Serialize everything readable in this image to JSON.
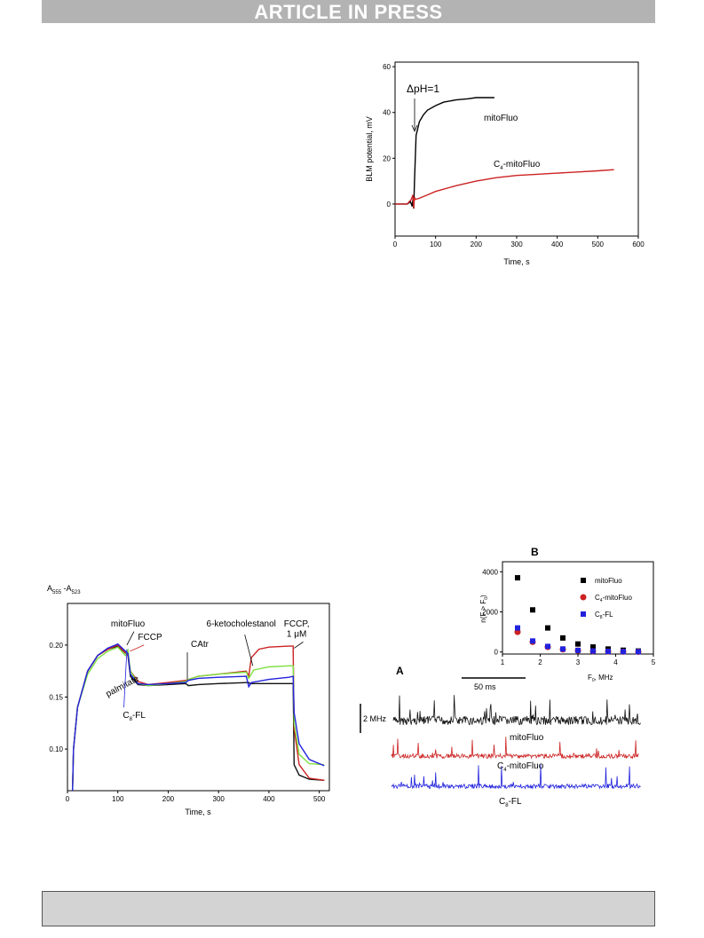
{
  "banner": "ARTICLE IN PRESS",
  "chart_data": [
    {
      "id": "blm",
      "type": "line",
      "xlabel": "Time, s",
      "ylabel": "BLM potential, mV",
      "xlim": [
        0,
        600
      ],
      "ylim": [
        -14,
        62
      ],
      "xticks": [
        0,
        100,
        200,
        300,
        400,
        500,
        600
      ],
      "yticks": [
        0,
        20,
        40,
        60
      ],
      "annotations": [
        {
          "text": "ΔpH=1",
          "x": 47,
          "y": 52
        }
      ],
      "series": [
        {
          "name": "mitoFluo",
          "color": "#000000",
          "x": [
            0,
            30,
            38,
            42,
            44,
            46,
            48,
            52,
            56,
            60,
            70,
            80,
            100,
            120,
            150,
            180,
            200,
            220,
            245
          ],
          "y": [
            0,
            0,
            1,
            -1,
            2,
            -2,
            10,
            30,
            33,
            36,
            39,
            41,
            43,
            44.5,
            45.5,
            46,
            46.5,
            46.5,
            46.5
          ]
        },
        {
          "name": "C4-mitoFluo",
          "color": "#cc2222",
          "x": [
            0,
            30,
            40,
            44,
            46,
            48,
            50,
            60,
            80,
            100,
            150,
            200,
            250,
            300,
            350,
            400,
            450,
            500,
            540
          ],
          "y": [
            0,
            0,
            2,
            4,
            -2,
            3,
            2,
            2.5,
            4,
            5.5,
            8,
            10,
            11.5,
            12.5,
            13,
            13.5,
            14,
            14.5,
            15
          ]
        }
      ]
    },
    {
      "id": "abs",
      "type": "line",
      "ylabel": "A555 -A523",
      "xlabel": "Time, s",
      "xlim": [
        0,
        520
      ],
      "ylim": [
        0.06,
        0.24
      ],
      "xticks": [
        0,
        100,
        200,
        300,
        400,
        500
      ],
      "yticks": [
        0.1,
        0.15,
        0.2
      ],
      "annotations": [
        {
          "text": "mitoFluo",
          "x": 120,
          "y": 0.218
        },
        {
          "text": "FCCP",
          "x": 140,
          "y": 0.205
        },
        {
          "text": "CAtr",
          "x": 245,
          "y": 0.198
        },
        {
          "text": "6-ketocholestanol",
          "x": 345,
          "y": 0.218
        },
        {
          "text": "FCCP,",
          "x": 455,
          "y": 0.218
        },
        {
          "text": "1 μM",
          "x": 455,
          "y": 0.208
        },
        {
          "text": "palmitate",
          "x": 80,
          "y": 0.15
        },
        {
          "text": "C8-FL",
          "x": 110,
          "y": 0.13
        }
      ],
      "series": [
        {
          "name": "black",
          "color": "#111111",
          "x": [
            10,
            12,
            20,
            40,
            60,
            80,
            100,
            120,
            125,
            140,
            160,
            200,
            235,
            240,
            260,
            300,
            360,
            362,
            400,
            440,
            448,
            450,
            460,
            480,
            510
          ],
          "y": [
            0.06,
            0.1,
            0.14,
            0.175,
            0.19,
            0.196,
            0.199,
            0.19,
            0.17,
            0.162,
            0.161,
            0.162,
            0.163,
            0.161,
            0.162,
            0.163,
            0.164,
            0.163,
            0.163,
            0.163,
            0.163,
            0.085,
            0.075,
            0.071,
            0.07
          ]
        },
        {
          "name": "red",
          "color": "#cc2222",
          "x": [
            10,
            12,
            20,
            40,
            60,
            80,
            100,
            120,
            125,
            140,
            160,
            200,
            235,
            240,
            260,
            300,
            355,
            360,
            365,
            380,
            400,
            440,
            448,
            450,
            460,
            480,
            510
          ],
          "y": [
            0.06,
            0.1,
            0.14,
            0.175,
            0.19,
            0.196,
            0.2,
            0.19,
            0.175,
            0.165,
            0.162,
            0.164,
            0.166,
            0.167,
            0.17,
            0.172,
            0.175,
            0.17,
            0.188,
            0.196,
            0.198,
            0.199,
            0.199,
            0.12,
            0.085,
            0.072,
            0.07
          ]
        },
        {
          "name": "green",
          "color": "#7ee040",
          "x": [
            10,
            12,
            20,
            40,
            60,
            80,
            100,
            115,
            120,
            125,
            140,
            160,
            200,
            235,
            240,
            260,
            300,
            355,
            360,
            370,
            400,
            440,
            448,
            450,
            460,
            480,
            510
          ],
          "y": [
            0.06,
            0.1,
            0.14,
            0.172,
            0.187,
            0.194,
            0.198,
            0.19,
            0.195,
            0.175,
            0.163,
            0.161,
            0.163,
            0.165,
            0.167,
            0.17,
            0.172,
            0.174,
            0.168,
            0.176,
            0.179,
            0.18,
            0.18,
            0.125,
            0.095,
            0.086,
            0.085
          ]
        },
        {
          "name": "blue",
          "color": "#2222dd",
          "x": [
            10,
            12,
            20,
            40,
            60,
            80,
            100,
            120,
            125,
            140,
            160,
            200,
            235,
            240,
            260,
            300,
            355,
            360,
            365,
            400,
            440,
            448,
            450,
            460,
            480,
            510
          ],
          "y": [
            0.06,
            0.1,
            0.14,
            0.175,
            0.19,
            0.197,
            0.201,
            0.192,
            0.172,
            0.163,
            0.162,
            0.163,
            0.164,
            0.166,
            0.168,
            0.169,
            0.17,
            0.16,
            0.164,
            0.167,
            0.169,
            0.17,
            0.135,
            0.105,
            0.09,
            0.084
          ]
        }
      ]
    },
    {
      "id": "panelB",
      "type": "scatter",
      "panel_label": "B",
      "xlabel": "F0, MHz",
      "ylabel": "n(F > F0)",
      "xlim": [
        1,
        5
      ],
      "ylim": [
        -100,
        4500
      ],
      "xticks": [
        1,
        2,
        3,
        4,
        5
      ],
      "yticks": [
        0,
        2000,
        4000
      ],
      "legend": "top-right",
      "series": [
        {
          "name": "mitoFluo",
          "color": "#000000",
          "marker": "square",
          "x": [
            1.4,
            1.8,
            2.2,
            2.6,
            3.0,
            3.4,
            3.8,
            4.2,
            4.6
          ],
          "y": [
            3700,
            2100,
            1200,
            700,
            400,
            250,
            150,
            90,
            50
          ]
        },
        {
          "name": "C4-mitoFluo",
          "color": "#cc2222",
          "marker": "circle",
          "x": [
            1.4,
            1.8,
            2.2,
            2.6,
            3.0,
            3.4,
            3.8,
            4.2,
            4.6
          ],
          "y": [
            1000,
            500,
            250,
            130,
            70,
            40,
            25,
            15,
            10
          ]
        },
        {
          "name": "C8-FL",
          "color": "#2222dd",
          "marker": "square",
          "x": [
            1.4,
            1.8,
            2.2,
            2.6,
            3.0,
            3.4,
            3.8,
            4.2,
            4.6
          ],
          "y": [
            1200,
            550,
            280,
            150,
            80,
            50,
            30,
            20,
            15
          ]
        }
      ]
    },
    {
      "id": "panelA",
      "type": "line",
      "panel_label": "A",
      "scalebars": {
        "time": "50 ms",
        "amplitude": "2 MHz"
      },
      "series": [
        {
          "name": "mitoFluo",
          "color": "#111111"
        },
        {
          "name": "C4-mitoFluo",
          "color": "#cc2222"
        },
        {
          "name": "C8-FL",
          "color": "#2222dd"
        }
      ]
    }
  ]
}
